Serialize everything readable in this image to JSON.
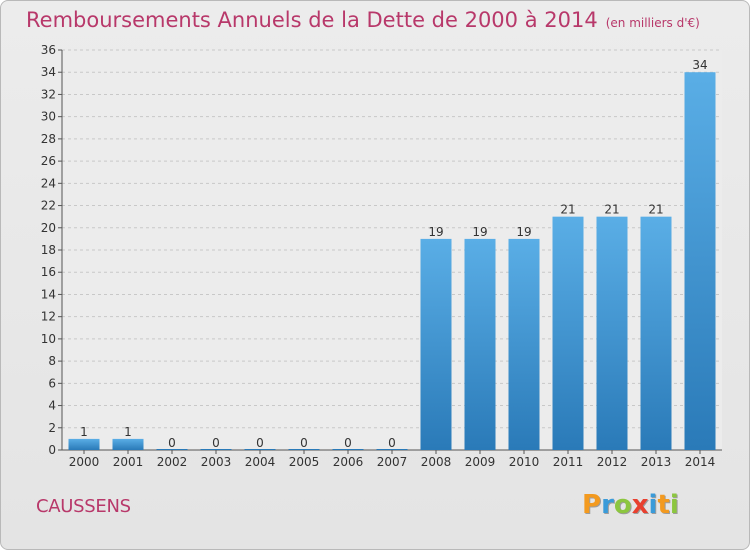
{
  "page": {
    "title": "Remboursements Annuels de la Dette de 2000 à 2014",
    "unit_note": "(en milliers d'€)",
    "town": "CAUSSENS",
    "logo": {
      "letters": [
        "P",
        "r",
        "o",
        "x",
        "i",
        "t",
        "i"
      ],
      "colors": [
        "#f39a1f",
        "#3a9bd9",
        "#8cc63f",
        "#e8402f",
        "#3a9bd9",
        "#f39a1f",
        "#8cc63f"
      ]
    }
  },
  "chart_data": {
    "type": "bar",
    "title": "Remboursements Annuels de la Dette de 2000 à 2014",
    "categories": [
      "2000",
      "2001",
      "2002",
      "2003",
      "2004",
      "2005",
      "2006",
      "2007",
      "2008",
      "2009",
      "2010",
      "2011",
      "2012",
      "2013",
      "2014"
    ],
    "values": [
      1,
      1,
      0,
      0,
      0,
      0,
      0,
      0,
      19,
      19,
      19,
      21,
      21,
      21,
      34
    ],
    "data_labels": [
      "1",
      "1",
      "0",
      "0",
      "0",
      "0",
      "0",
      "0",
      "19",
      "19",
      "19",
      "21",
      "21",
      "21",
      "34"
    ],
    "ylim": [
      0,
      36
    ],
    "yticks": [
      0,
      2,
      4,
      6,
      8,
      10,
      12,
      14,
      16,
      18,
      20,
      22,
      24,
      26,
      28,
      30,
      32,
      34,
      36
    ],
    "grid": true,
    "bar_color_top": "#5aaee6",
    "bar_color_bottom": "#2a7ab8",
    "xlabel": "",
    "ylabel": ""
  }
}
